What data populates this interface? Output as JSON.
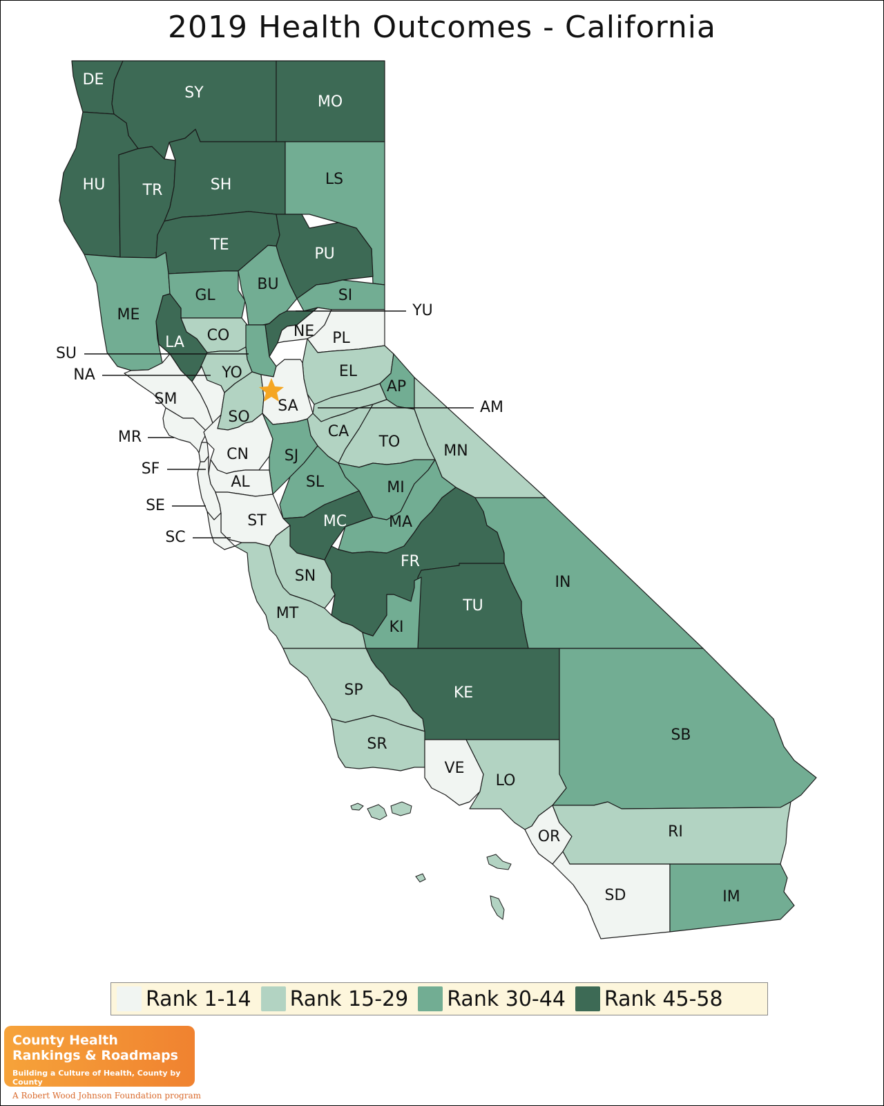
{
  "title": "2019 Health Outcomes - California",
  "colors": {
    "rank_1_14": "#f1f5f2",
    "rank_15_29": "#b2d3c2",
    "rank_30_44": "#72ad93",
    "rank_45_58": "#3d6a55",
    "marker": "#f5a623"
  },
  "legend": {
    "items": [
      {
        "label": "Rank 1-14",
        "tier": 1
      },
      {
        "label": "Rank 15-29",
        "tier": 2
      },
      {
        "label": "Rank 30-44",
        "tier": 3
      },
      {
        "label": "Rank 45-58",
        "tier": 4
      }
    ]
  },
  "counties": [
    {
      "code": "DE",
      "tier": 4
    },
    {
      "code": "SY",
      "tier": 4
    },
    {
      "code": "MO",
      "tier": 4
    },
    {
      "code": "HU",
      "tier": 4
    },
    {
      "code": "TR",
      "tier": 4
    },
    {
      "code": "SH",
      "tier": 4
    },
    {
      "code": "LS",
      "tier": 3
    },
    {
      "code": "TE",
      "tier": 4
    },
    {
      "code": "PU",
      "tier": 4
    },
    {
      "code": "ME",
      "tier": 3
    },
    {
      "code": "GL",
      "tier": 3
    },
    {
      "code": "BU",
      "tier": 3
    },
    {
      "code": "SI",
      "tier": 3
    },
    {
      "code": "YU",
      "tier": 4
    },
    {
      "code": "LA",
      "tier": 4
    },
    {
      "code": "CO",
      "tier": 2
    },
    {
      "code": "NE",
      "tier": 1
    },
    {
      "code": "PL",
      "tier": 1
    },
    {
      "code": "SU",
      "tier": 3
    },
    {
      "code": "YO",
      "tier": 2
    },
    {
      "code": "NA",
      "tier": 1
    },
    {
      "code": "EL",
      "tier": 2
    },
    {
      "code": "AP",
      "tier": 3
    },
    {
      "code": "AM",
      "tier": 2
    },
    {
      "code": "SM",
      "tier": 1
    },
    {
      "code": "SO",
      "tier": 2
    },
    {
      "code": "SA",
      "tier": 1
    },
    {
      "code": "CA",
      "tier": 2
    },
    {
      "code": "TO",
      "tier": 2
    },
    {
      "code": "MN",
      "tier": 2
    },
    {
      "code": "MR",
      "tier": 1
    },
    {
      "code": "CN",
      "tier": 1
    },
    {
      "code": "SJ",
      "tier": 3
    },
    {
      "code": "SF",
      "tier": 1
    },
    {
      "code": "AL",
      "tier": 1
    },
    {
      "code": "SL",
      "tier": 3
    },
    {
      "code": "MI",
      "tier": 3
    },
    {
      "code": "SE",
      "tier": 1
    },
    {
      "code": "MC",
      "tier": 4
    },
    {
      "code": "MA",
      "tier": 3
    },
    {
      "code": "ST",
      "tier": 1
    },
    {
      "code": "SC",
      "tier": 1
    },
    {
      "code": "SN",
      "tier": 2
    },
    {
      "code": "FR",
      "tier": 4
    },
    {
      "code": "IN",
      "tier": 3
    },
    {
      "code": "MT",
      "tier": 2
    },
    {
      "code": "TU",
      "tier": 4
    },
    {
      "code": "KI",
      "tier": 3
    },
    {
      "code": "KE",
      "tier": 4
    },
    {
      "code": "SP",
      "tier": 2
    },
    {
      "code": "SB",
      "tier": 3
    },
    {
      "code": "SR",
      "tier": 2
    },
    {
      "code": "VE",
      "tier": 1
    },
    {
      "code": "LO",
      "tier": 2
    },
    {
      "code": "OR",
      "tier": 1
    },
    {
      "code": "RI",
      "tier": 2
    },
    {
      "code": "SD",
      "tier": 1
    },
    {
      "code": "IM",
      "tier": 3
    }
  ],
  "logo": {
    "line1": "County Health",
    "line2": "Rankings & Roadmaps",
    "tagline": "Building a Culture of Health, County by County",
    "sub": "A Robert Wood Johnson Foundation program"
  }
}
